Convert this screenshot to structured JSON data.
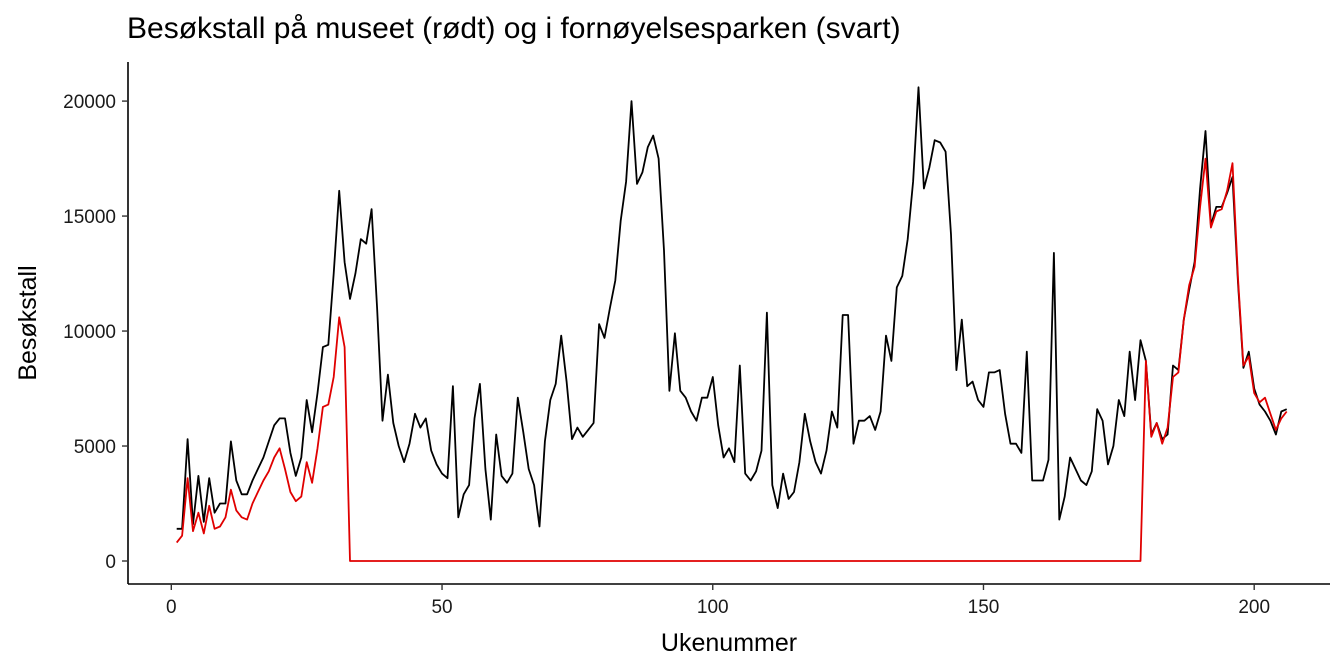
{
  "chart_data": {
    "type": "line",
    "title": "Besøkstall på museet (rødt) og i fornøyelsesparken (svart)",
    "xlabel": "Ukenummer",
    "ylabel": "Besøkstall",
    "xlim": [
      -8,
      214
    ],
    "ylim": [
      -1000,
      21700
    ],
    "x_ticks": [
      0,
      50,
      100,
      150,
      200
    ],
    "y_ticks": [
      0,
      5000,
      10000,
      15000,
      20000
    ],
    "grid": false,
    "colors": {
      "park": "#000000",
      "museum": "#e00000"
    },
    "series": [
      {
        "key": "park",
        "color": "#000000",
        "points": [
          [
            1,
            1400
          ],
          [
            2,
            1400
          ],
          [
            3,
            5300
          ],
          [
            4,
            1600
          ],
          [
            5,
            3700
          ],
          [
            6,
            1700
          ],
          [
            7,
            3600
          ],
          [
            8,
            2100
          ],
          [
            9,
            2500
          ],
          [
            10,
            2500
          ],
          [
            11,
            5200
          ],
          [
            12,
            3500
          ],
          [
            13,
            2900
          ],
          [
            14,
            2900
          ],
          [
            15,
            3500
          ],
          [
            16,
            4000
          ],
          [
            17,
            4500
          ],
          [
            18,
            5200
          ],
          [
            19,
            5900
          ],
          [
            20,
            6200
          ],
          [
            21,
            6200
          ],
          [
            22,
            4700
          ],
          [
            23,
            3700
          ],
          [
            24,
            4500
          ],
          [
            25,
            7000
          ],
          [
            26,
            5600
          ],
          [
            27,
            7300
          ],
          [
            28,
            9300
          ],
          [
            29,
            9400
          ],
          [
            30,
            12500
          ],
          [
            31,
            16100
          ],
          [
            32,
            13000
          ],
          [
            33,
            11400
          ],
          [
            34,
            12500
          ],
          [
            35,
            14000
          ],
          [
            36,
            13800
          ],
          [
            37,
            15300
          ],
          [
            38,
            11000
          ],
          [
            39,
            6100
          ],
          [
            40,
            8100
          ],
          [
            41,
            6000
          ],
          [
            42,
            5000
          ],
          [
            43,
            4300
          ],
          [
            44,
            5100
          ],
          [
            45,
            6400
          ],
          [
            46,
            5800
          ],
          [
            47,
            6200
          ],
          [
            48,
            4800
          ],
          [
            49,
            4200
          ],
          [
            50,
            3800
          ],
          [
            51,
            3600
          ],
          [
            52,
            7600
          ],
          [
            53,
            1900
          ],
          [
            54,
            2900
          ],
          [
            55,
            3300
          ],
          [
            56,
            6200
          ],
          [
            57,
            7700
          ],
          [
            58,
            4000
          ],
          [
            59,
            1800
          ],
          [
            60,
            5500
          ],
          [
            61,
            3700
          ],
          [
            62,
            3400
          ],
          [
            63,
            3800
          ],
          [
            64,
            7100
          ],
          [
            65,
            5600
          ],
          [
            66,
            4000
          ],
          [
            67,
            3300
          ],
          [
            68,
            1500
          ],
          [
            69,
            5200
          ],
          [
            70,
            7000
          ],
          [
            71,
            7700
          ],
          [
            72,
            9800
          ],
          [
            73,
            7800
          ],
          [
            74,
            5300
          ],
          [
            75,
            5800
          ],
          [
            76,
            5400
          ],
          [
            77,
            5700
          ],
          [
            78,
            6000
          ],
          [
            79,
            10300
          ],
          [
            80,
            9700
          ],
          [
            81,
            11000
          ],
          [
            82,
            12200
          ],
          [
            83,
            14800
          ],
          [
            84,
            16500
          ],
          [
            85,
            20000
          ],
          [
            86,
            16400
          ],
          [
            87,
            16900
          ],
          [
            88,
            18000
          ],
          [
            89,
            18500
          ],
          [
            90,
            17500
          ],
          [
            91,
            13500
          ],
          [
            92,
            7400
          ],
          [
            93,
            9900
          ],
          [
            94,
            7400
          ],
          [
            95,
            7100
          ],
          [
            96,
            6500
          ],
          [
            97,
            6100
          ],
          [
            98,
            7100
          ],
          [
            99,
            7100
          ],
          [
            100,
            8000
          ],
          [
            101,
            5900
          ],
          [
            102,
            4500
          ],
          [
            103,
            4900
          ],
          [
            104,
            4300
          ],
          [
            105,
            8500
          ],
          [
            106,
            3800
          ],
          [
            107,
            3500
          ],
          [
            108,
            3900
          ],
          [
            109,
            4800
          ],
          [
            110,
            10800
          ],
          [
            111,
            3300
          ],
          [
            112,
            2300
          ],
          [
            113,
            3800
          ],
          [
            114,
            2700
          ],
          [
            115,
            3000
          ],
          [
            116,
            4300
          ],
          [
            117,
            6400
          ],
          [
            118,
            5200
          ],
          [
            119,
            4300
          ],
          [
            120,
            3800
          ],
          [
            121,
            4800
          ],
          [
            122,
            6500
          ],
          [
            123,
            5800
          ],
          [
            124,
            10700
          ],
          [
            125,
            10700
          ],
          [
            126,
            5100
          ],
          [
            127,
            6100
          ],
          [
            128,
            6100
          ],
          [
            129,
            6300
          ],
          [
            130,
            5700
          ],
          [
            131,
            6500
          ],
          [
            132,
            9800
          ],
          [
            133,
            8700
          ],
          [
            134,
            11900
          ],
          [
            135,
            12400
          ],
          [
            136,
            14000
          ],
          [
            137,
            16500
          ],
          [
            138,
            20600
          ],
          [
            139,
            16200
          ],
          [
            140,
            17100
          ],
          [
            141,
            18300
          ],
          [
            142,
            18200
          ],
          [
            143,
            17800
          ],
          [
            144,
            14200
          ],
          [
            145,
            8300
          ],
          [
            146,
            10500
          ],
          [
            147,
            7600
          ],
          [
            148,
            7800
          ],
          [
            149,
            7000
          ],
          [
            150,
            6700
          ],
          [
            151,
            8200
          ],
          [
            152,
            8200
          ],
          [
            153,
            8300
          ],
          [
            154,
            6400
          ],
          [
            155,
            5100
          ],
          [
            156,
            5100
          ],
          [
            157,
            4700
          ],
          [
            158,
            9100
          ],
          [
            159,
            3500
          ],
          [
            160,
            3500
          ],
          [
            161,
            3500
          ],
          [
            162,
            4400
          ],
          [
            163,
            13400
          ],
          [
            164,
            1800
          ],
          [
            165,
            2800
          ],
          [
            166,
            4500
          ],
          [
            167,
            4000
          ],
          [
            168,
            3500
          ],
          [
            169,
            3300
          ],
          [
            170,
            3900
          ],
          [
            171,
            6600
          ],
          [
            172,
            6100
          ],
          [
            173,
            4200
          ],
          [
            174,
            5000
          ],
          [
            175,
            7000
          ],
          [
            176,
            6300
          ],
          [
            177,
            9100
          ],
          [
            178,
            7000
          ],
          [
            179,
            9600
          ],
          [
            180,
            8700
          ],
          [
            181,
            5500
          ],
          [
            182,
            6000
          ],
          [
            183,
            5300
          ],
          [
            184,
            5500
          ],
          [
            185,
            8500
          ],
          [
            186,
            8300
          ],
          [
            187,
            10500
          ],
          [
            188,
            11800
          ],
          [
            189,
            13000
          ],
          [
            190,
            16200
          ],
          [
            191,
            18700
          ],
          [
            192,
            14600
          ],
          [
            193,
            15400
          ],
          [
            194,
            15400
          ],
          [
            195,
            16000
          ],
          [
            196,
            16700
          ],
          [
            197,
            12100
          ],
          [
            198,
            8400
          ],
          [
            199,
            9100
          ],
          [
            200,
            7500
          ],
          [
            201,
            6800
          ],
          [
            202,
            6500
          ],
          [
            203,
            6100
          ],
          [
            204,
            5500
          ],
          [
            205,
            6500
          ],
          [
            206,
            6600
          ]
        ]
      },
      {
        "key": "museum",
        "color": "#e00000",
        "points": [
          [
            1,
            800
          ],
          [
            2,
            1100
          ],
          [
            3,
            3600
          ],
          [
            4,
            1300
          ],
          [
            5,
            2100
          ],
          [
            6,
            1200
          ],
          [
            7,
            2400
          ],
          [
            8,
            1400
          ],
          [
            9,
            1500
          ],
          [
            10,
            1900
          ],
          [
            11,
            3100
          ],
          [
            12,
            2200
          ],
          [
            13,
            1900
          ],
          [
            14,
            1800
          ],
          [
            15,
            2500
          ],
          [
            16,
            3000
          ],
          [
            17,
            3500
          ],
          [
            18,
            3900
          ],
          [
            19,
            4500
          ],
          [
            20,
            4900
          ],
          [
            21,
            4000
          ],
          [
            22,
            3000
          ],
          [
            23,
            2600
          ],
          [
            24,
            2800
          ],
          [
            25,
            4300
          ],
          [
            26,
            3400
          ],
          [
            27,
            4900
          ],
          [
            28,
            6700
          ],
          [
            29,
            6800
          ],
          [
            30,
            8000
          ],
          [
            31,
            10600
          ],
          [
            32,
            9300
          ],
          [
            33,
            0
          ],
          [
            179,
            0
          ],
          [
            180,
            8700
          ],
          [
            181,
            5400
          ],
          [
            182,
            6000
          ],
          [
            183,
            5100
          ],
          [
            184,
            5800
          ],
          [
            185,
            8000
          ],
          [
            186,
            8200
          ],
          [
            187,
            10500
          ],
          [
            188,
            12000
          ],
          [
            189,
            12800
          ],
          [
            190,
            15400
          ],
          [
            191,
            17500
          ],
          [
            192,
            14500
          ],
          [
            193,
            15200
          ],
          [
            194,
            15300
          ],
          [
            195,
            16100
          ],
          [
            196,
            17300
          ],
          [
            197,
            12300
          ],
          [
            198,
            8500
          ],
          [
            199,
            8900
          ],
          [
            200,
            7300
          ],
          [
            201,
            6900
          ],
          [
            202,
            7100
          ],
          [
            203,
            6400
          ],
          [
            204,
            5700
          ],
          [
            205,
            6200
          ],
          [
            206,
            6500
          ]
        ]
      }
    ]
  }
}
